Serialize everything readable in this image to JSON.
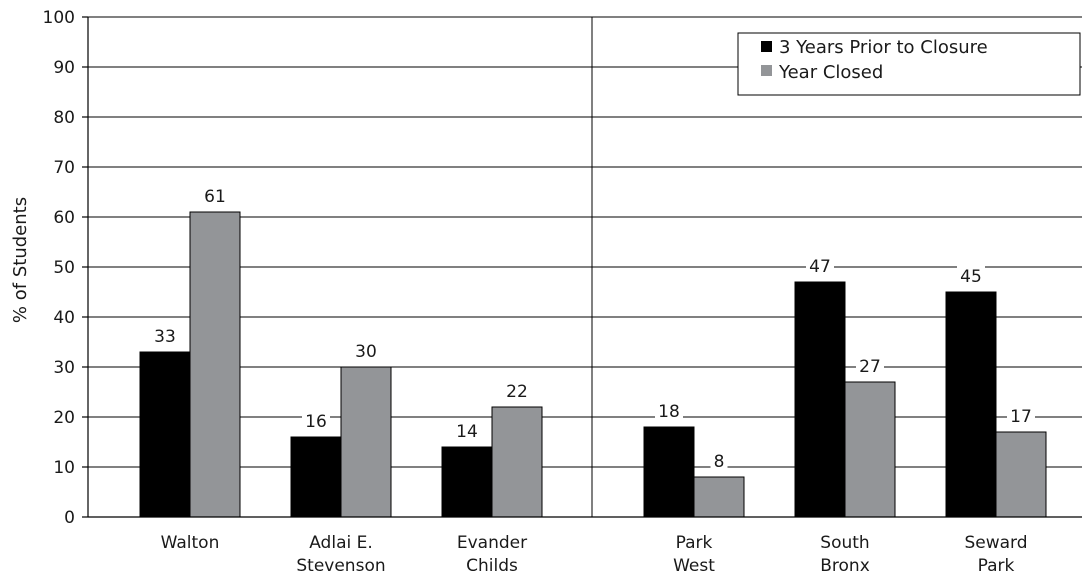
{
  "chart_data": {
    "type": "bar",
    "ylabel": "% of Students",
    "ylim": [
      0,
      100
    ],
    "yticks": [
      0,
      10,
      20,
      30,
      40,
      50,
      60,
      70,
      80,
      90,
      100
    ],
    "grid": true,
    "legend_position": "top-right",
    "categories": [
      [
        "Walton"
      ],
      [
        "Adlai E.",
        "Stevenson"
      ],
      [
        "Evander",
        "Childs"
      ],
      [
        "Park",
        "West"
      ],
      [
        "South",
        "Bronx"
      ],
      [
        "Seward",
        "Park"
      ]
    ],
    "group_divider_after_index": 2,
    "series": [
      {
        "name": "3 Years Prior to Closure",
        "color": "#000000",
        "values": [
          33,
          16,
          14,
          18,
          47,
          45
        ],
        "labels": [
          "33",
          "16",
          "14",
          "18",
          "47",
          "45"
        ]
      },
      {
        "name": "Year Closed",
        "color": "#939598",
        "values": [
          61,
          30,
          22,
          8,
          27,
          17
        ],
        "labels": [
          "61",
          "30",
          "22",
          "8",
          "27",
          "17"
        ]
      }
    ]
  }
}
